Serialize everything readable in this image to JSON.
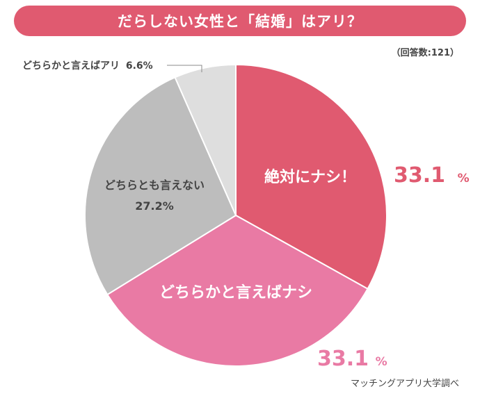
{
  "title": "だらしない女性と「結婚」はアリ？",
  "respondents_note": "（回答数:121）",
  "source": "マッチングアプリ大学調べ",
  "chart_data": {
    "type": "pie",
    "slices": [
      {
        "label": "絶対にナシ！",
        "value": 33.1,
        "value_number": "33.1",
        "value_unit": "%",
        "color": "#e05a70",
        "label_color": "#ffffff",
        "value_color": "#e05a70"
      },
      {
        "label": "どちらかと言えばナシ",
        "value": 33.1,
        "value_number": "33.1",
        "value_unit": "%",
        "color": "#e97aa4",
        "label_color": "#ffffff",
        "value_color": "#e97aa4"
      },
      {
        "label": "どちらとも言えない",
        "value": 27.2,
        "value_text": "27.2%",
        "color": "#bdbdbd",
        "label_color": "#444444"
      },
      {
        "label": "どちらかと言えばアリ",
        "value": 6.6,
        "value_text": "6.6%",
        "color": "#dedede",
        "label_color": "#444444"
      }
    ]
  }
}
